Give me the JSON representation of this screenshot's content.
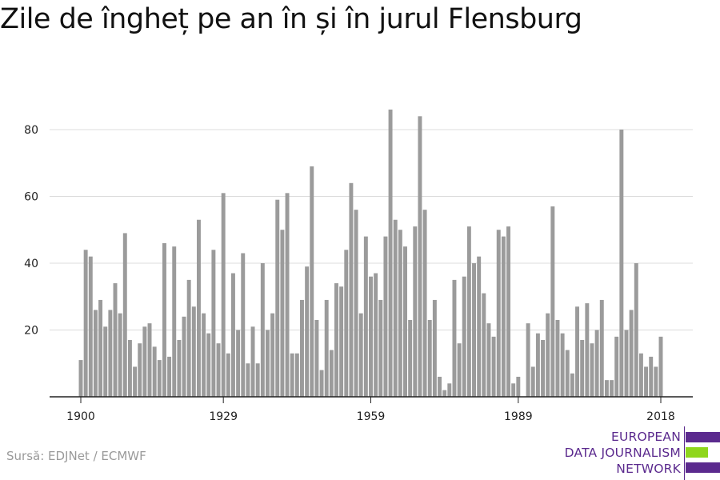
{
  "title": "Zile de îngheț pe an în și în jurul Flensburg",
  "source": "Sursă: EDJNet / ECMWF",
  "logo": {
    "lines": [
      "EUROPEAN",
      "DATA JOURNALISM",
      "NETWORK"
    ],
    "colors": {
      "purple": "#5b2a8e",
      "green": "#8fd61c"
    }
  },
  "chart_data": {
    "type": "bar",
    "bar_color": "#9b9b9b",
    "x": [
      1900,
      1901,
      1902,
      1903,
      1904,
      1905,
      1906,
      1907,
      1908,
      1909,
      1910,
      1911,
      1912,
      1913,
      1914,
      1915,
      1916,
      1917,
      1918,
      1919,
      1920,
      1921,
      1922,
      1923,
      1924,
      1925,
      1926,
      1927,
      1928,
      1929,
      1930,
      1931,
      1932,
      1933,
      1934,
      1935,
      1936,
      1937,
      1938,
      1939,
      1940,
      1941,
      1942,
      1943,
      1944,
      1945,
      1946,
      1947,
      1948,
      1949,
      1950,
      1951,
      1952,
      1953,
      1954,
      1955,
      1956,
      1957,
      1958,
      1959,
      1960,
      1961,
      1962,
      1963,
      1964,
      1965,
      1966,
      1967,
      1968,
      1969,
      1970,
      1971,
      1972,
      1973,
      1974,
      1975,
      1976,
      1977,
      1978,
      1979,
      1980,
      1981,
      1982,
      1983,
      1984,
      1985,
      1986,
      1987,
      1988,
      1989,
      1990,
      1991,
      1992,
      1993,
      1994,
      1995,
      1996,
      1997,
      1998,
      1999,
      2000,
      2001,
      2002,
      2003,
      2004,
      2005,
      2006,
      2007,
      2008,
      2009,
      2010,
      2011,
      2012,
      2013,
      2014,
      2015,
      2016,
      2017,
      2018
    ],
    "values": [
      11,
      44,
      42,
      26,
      29,
      21,
      26,
      34,
      25,
      49,
      17,
      9,
      16,
      21,
      22,
      15,
      11,
      46,
      12,
      45,
      17,
      24,
      35,
      27,
      53,
      25,
      19,
      44,
      16,
      61,
      13,
      37,
      20,
      43,
      10,
      21,
      10,
      40,
      20,
      25,
      59,
      50,
      61,
      13,
      13,
      29,
      39,
      69,
      23,
      8,
      29,
      14,
      34,
      33,
      44,
      64,
      56,
      25,
      48,
      36,
      37,
      29,
      48,
      86,
      53,
      50,
      45,
      23,
      51,
      84,
      56,
      23,
      29,
      6,
      2,
      4,
      35,
      16,
      36,
      51,
      40,
      42,
      31,
      22,
      18,
      50,
      48,
      51,
      4,
      6,
      0,
      22,
      9,
      19,
      17,
      25,
      57,
      23,
      19,
      14,
      7,
      27,
      17,
      28,
      16,
      20,
      29,
      5,
      5,
      18,
      80,
      20,
      26,
      40,
      13,
      9,
      12,
      9,
      18
    ],
    "x_ticks": [
      1900,
      1929,
      1959,
      1989,
      2018
    ],
    "y_ticks": [
      20,
      40,
      60,
      80
    ],
    "ylim": [
      0,
      90
    ],
    "grid": true
  }
}
